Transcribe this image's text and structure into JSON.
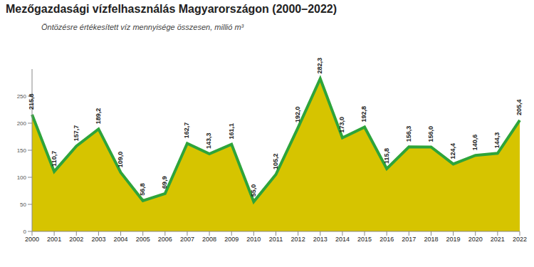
{
  "chart_data": {
    "type": "area",
    "title": "Mezőgazdasági vízfelhasználás Magyarországon (2000–2022)",
    "subtitle": "Öntözésre értékesített víz mennyisége összesen, millió m³",
    "categories": [
      "2000",
      "2001",
      "2002",
      "2003",
      "2004",
      "2005",
      "2006",
      "2007",
      "2008",
      "2009",
      "2010",
      "2011",
      "2012",
      "2013",
      "2014",
      "2015",
      "2016",
      "2017",
      "2018",
      "2019",
      "2020",
      "2021",
      "2022"
    ],
    "values": [
      215.8,
      110.7,
      157.7,
      189.2,
      109.0,
      56.8,
      69.9,
      162.7,
      143.3,
      161.1,
      55.0,
      105.2,
      192.0,
      282.3,
      173.0,
      192.8,
      115.8,
      156.3,
      156.0,
      124.4,
      140.6,
      144.3,
      205.4
    ],
    "value_labels": [
      "215,8",
      "110,7",
      "157,7",
      "189,2",
      "109,0",
      "56,8",
      "69,9",
      "162,7",
      "143,3",
      "161,1",
      "55,0",
      "105,2",
      "192,0",
      "282,3",
      "173,0",
      "192,8",
      "115,8",
      "156,3",
      "156,0",
      "124,4",
      "140,6",
      "144,3",
      "205,4"
    ],
    "color": "#d6c400",
    "ylim": [
      0,
      300
    ],
    "yticks": [
      0,
      50,
      100,
      150,
      200,
      250
    ],
    "grid": false,
    "data_labels": true
  }
}
